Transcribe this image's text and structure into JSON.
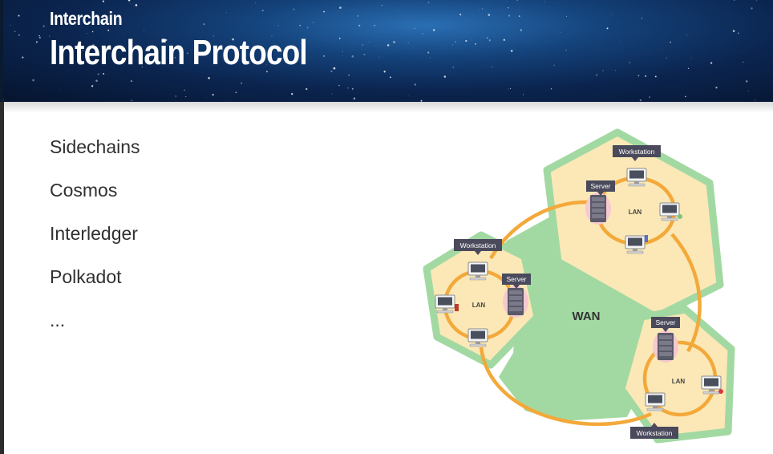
{
  "header": {
    "subtitle": "Interchain",
    "title": "Interchain Protocol"
  },
  "bullets": [
    "Sidechains",
    "Cosmos",
    "Interledger",
    "Polkadot",
    "..."
  ],
  "diagram": {
    "wan_label": "WAN",
    "lan_label": "LAN",
    "workstation_label": "Workstation",
    "server_label": "Server"
  },
  "colors": {
    "wan_green": "#a2d9a2",
    "lan_fill": "#fbe8b6",
    "ring_orange": "#f3a93a",
    "callout_dark": "#4a4a5c"
  }
}
